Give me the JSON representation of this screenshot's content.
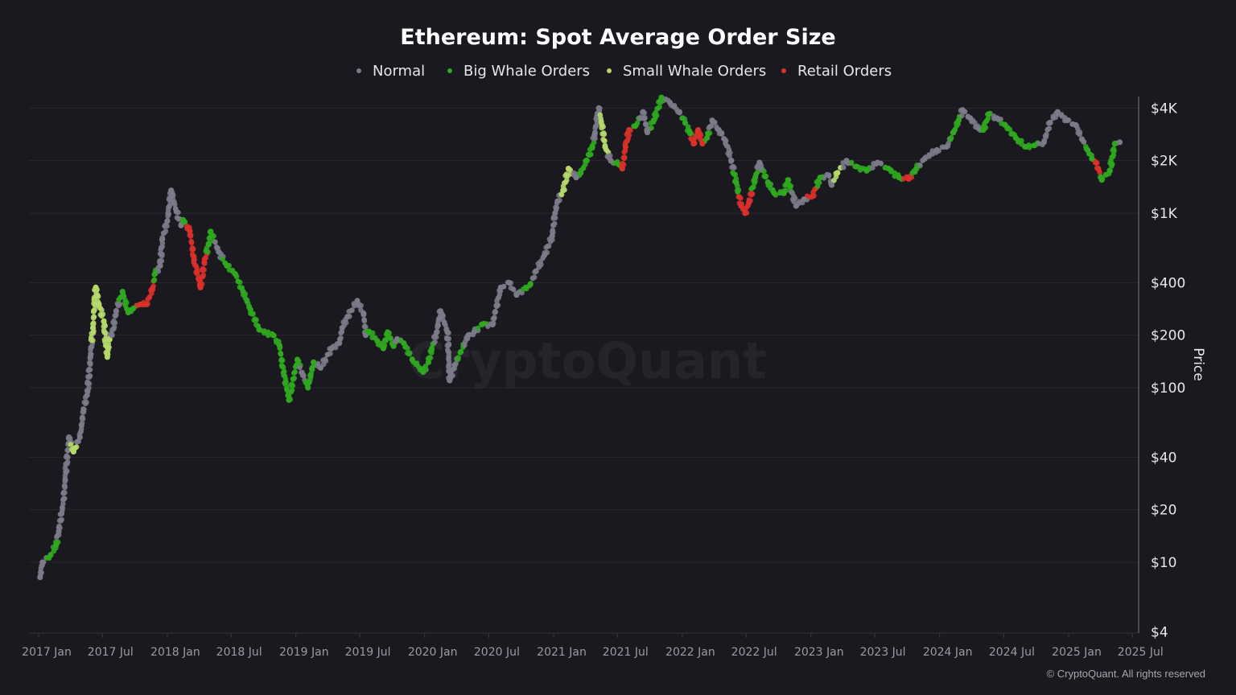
{
  "chart_data": {
    "type": "scatter",
    "title": "Ethereum: Spot Average Order Size",
    "ylabel": "Price",
    "xlabel": "",
    "y_scale": "log",
    "ylim": [
      4,
      4600
    ],
    "xlim": [
      "2017-01-01",
      "2025-07-01"
    ],
    "grid": true,
    "legend_position": "top",
    "y_ticks": [
      {
        "value": 4,
        "label": "$4"
      },
      {
        "value": 10,
        "label": "$10"
      },
      {
        "value": 20,
        "label": "$20"
      },
      {
        "value": 40,
        "label": "$40"
      },
      {
        "value": 100,
        "label": "$100"
      },
      {
        "value": 200,
        "label": "$200"
      },
      {
        "value": 400,
        "label": "$400"
      },
      {
        "value": 1000,
        "label": "$1K"
      },
      {
        "value": 2000,
        "label": "$2K"
      },
      {
        "value": 4000,
        "label": "$4K"
      }
    ],
    "x_ticks": [
      {
        "value": "2017-01-01",
        "label": "2017 Jan"
      },
      {
        "value": "2017-07-01",
        "label": "2017 Jul"
      },
      {
        "value": "2018-01-01",
        "label": "2018 Jan"
      },
      {
        "value": "2018-07-01",
        "label": "2018 Jul"
      },
      {
        "value": "2019-01-01",
        "label": "2019 Jan"
      },
      {
        "value": "2019-07-01",
        "label": "2019 Jul"
      },
      {
        "value": "2020-01-01",
        "label": "2020 Jan"
      },
      {
        "value": "2020-07-01",
        "label": "2020 Jul"
      },
      {
        "value": "2021-01-01",
        "label": "2021 Jan"
      },
      {
        "value": "2021-07-01",
        "label": "2021 Jul"
      },
      {
        "value": "2022-01-01",
        "label": "2022 Jan"
      },
      {
        "value": "2022-07-01",
        "label": "2022 Jul"
      },
      {
        "value": "2023-01-01",
        "label": "2023 Jan"
      },
      {
        "value": "2023-07-01",
        "label": "2023 Jul"
      },
      {
        "value": "2024-01-01",
        "label": "2024 Jan"
      },
      {
        "value": "2024-07-01",
        "label": "2024 Jul"
      },
      {
        "value": "2025-01-01",
        "label": "2025 Jan"
      },
      {
        "value": "2025-07-01",
        "label": "2025 Jul"
      }
    ],
    "series": [
      {
        "name": "Normal",
        "color": "#7a7a88",
        "points": [
          [
            "2017-01-05",
            8.2
          ],
          [
            "2017-01-12",
            10
          ],
          [
            "2017-02-27",
            15
          ],
          [
            "2017-03-07",
            19
          ],
          [
            "2017-03-13",
            23
          ],
          [
            "2017-03-19",
            33
          ],
          [
            "2017-03-28",
            52
          ],
          [
            "2017-04-28",
            52
          ],
          [
            "2017-05-09",
            75
          ],
          [
            "2017-05-20",
            95
          ],
          [
            "2017-05-28",
            150
          ],
          [
            "2017-07-28",
            200
          ],
          [
            "2017-08-09",
            275
          ],
          [
            "2017-12-12",
            500
          ],
          [
            "2017-12-18",
            710
          ],
          [
            "2018-01-01",
            900
          ],
          [
            "2018-01-12",
            1350
          ],
          [
            "2018-01-27",
            1020
          ],
          [
            "2018-02-09",
            850
          ],
          [
            "2018-05-27",
            600
          ],
          [
            "2019-01-21",
            118
          ],
          [
            "2019-03-12",
            130
          ],
          [
            "2019-04-12",
            168
          ],
          [
            "2019-05-04",
            180
          ],
          [
            "2019-05-12",
            220
          ],
          [
            "2019-05-27",
            255
          ],
          [
            "2019-06-24",
            315
          ],
          [
            "2019-07-12",
            265
          ],
          [
            "2019-07-18",
            200
          ],
          [
            "2019-10-15",
            190
          ],
          [
            "2020-02-04",
            208
          ],
          [
            "2020-02-15",
            275
          ],
          [
            "2020-03-06",
            208
          ],
          [
            "2020-03-12",
            110
          ],
          [
            "2020-03-27",
            135
          ],
          [
            "2020-05-04",
            200
          ],
          [
            "2020-05-20",
            208
          ],
          [
            "2020-07-12",
            230
          ],
          [
            "2020-07-23",
            295
          ],
          [
            "2020-08-04",
            375
          ],
          [
            "2020-08-27",
            400
          ],
          [
            "2020-09-18",
            340
          ],
          [
            "2020-11-12",
            465
          ],
          [
            "2020-12-06",
            575
          ],
          [
            "2020-12-28",
            740
          ],
          [
            "2021-01-05",
            1000
          ],
          [
            "2021-01-12",
            1170
          ],
          [
            "2021-03-06",
            1600
          ],
          [
            "2021-04-27",
            2800
          ],
          [
            "2021-05-09",
            4000
          ],
          [
            "2021-06-12",
            2000
          ],
          [
            "2021-09-12",
            3800
          ],
          [
            "2021-09-24",
            2900
          ],
          [
            "2021-11-27",
            4300
          ],
          [
            "2021-12-24",
            3800
          ],
          [
            "2022-03-27",
            3400
          ],
          [
            "2022-04-15",
            3000
          ],
          [
            "2022-05-04",
            2600
          ],
          [
            "2022-05-20",
            2000
          ],
          [
            "2022-08-08",
            1950
          ],
          [
            "2022-11-20",
            1100
          ],
          [
            "2022-12-12",
            1200
          ],
          [
            "2023-02-20",
            1650
          ],
          [
            "2023-03-01",
            1450
          ],
          [
            "2023-04-12",
            2000
          ],
          [
            "2023-07-09",
            1950
          ],
          [
            "2023-11-20",
            2050
          ],
          [
            "2023-12-24",
            2300
          ],
          [
            "2024-01-21",
            2400
          ],
          [
            "2024-03-06",
            3900
          ],
          [
            "2024-03-28",
            3500
          ],
          [
            "2024-04-21",
            3050
          ],
          [
            "2024-06-12",
            3500
          ],
          [
            "2024-10-23",
            2550
          ],
          [
            "2024-11-09",
            3300
          ],
          [
            "2024-12-01",
            3800
          ],
          [
            "2024-12-28",
            3400
          ],
          [
            "2025-01-21",
            3200
          ],
          [
            "2025-02-08",
            2650
          ],
          [
            "2025-05-26",
            2550
          ]
        ]
      },
      {
        "name": "Big Whale Orders",
        "color": "#2fa81f",
        "points": [
          [
            "2017-02-04",
            11
          ],
          [
            "2017-02-20",
            12.6
          ],
          [
            "2017-08-27",
            355
          ],
          [
            "2017-09-12",
            270
          ],
          [
            "2017-09-27",
            285
          ],
          [
            "2017-11-27",
            450
          ],
          [
            "2018-02-15",
            915
          ],
          [
            "2018-04-28",
            665
          ],
          [
            "2018-05-04",
            785
          ],
          [
            "2018-06-19",
            500
          ],
          [
            "2018-07-12",
            450
          ],
          [
            "2018-08-04",
            355
          ],
          [
            "2018-08-25",
            280
          ],
          [
            "2018-09-19",
            215
          ],
          [
            "2018-10-28",
            200
          ],
          [
            "2018-11-15",
            175
          ],
          [
            "2018-11-27",
            122
          ],
          [
            "2018-12-12",
            85
          ],
          [
            "2019-01-05",
            145
          ],
          [
            "2019-02-04",
            100
          ],
          [
            "2019-02-20",
            140
          ],
          [
            "2019-07-27",
            210
          ],
          [
            "2019-08-20",
            185
          ],
          [
            "2019-09-06",
            168
          ],
          [
            "2019-09-18",
            208
          ],
          [
            "2019-10-05",
            173
          ],
          [
            "2019-11-03",
            180
          ],
          [
            "2019-11-27",
            145
          ],
          [
            "2019-12-28",
            123
          ],
          [
            "2020-01-12",
            140
          ],
          [
            "2020-01-21",
            165
          ],
          [
            "2020-04-12",
            160
          ],
          [
            "2020-06-12",
            230
          ],
          [
            "2020-10-27",
            390
          ],
          [
            "2021-03-19",
            1700
          ],
          [
            "2021-04-05",
            2000
          ],
          [
            "2021-04-21",
            2400
          ],
          [
            "2021-07-05",
            1900
          ],
          [
            "2021-08-20",
            3150
          ],
          [
            "2021-10-12",
            3400
          ],
          [
            "2021-11-03",
            4600
          ],
          [
            "2022-01-09",
            3300
          ],
          [
            "2022-01-21",
            2950
          ],
          [
            "2022-03-12",
            2700
          ],
          [
            "2022-06-03",
            1500
          ],
          [
            "2022-07-27",
            1600
          ],
          [
            "2022-09-01",
            1500
          ],
          [
            "2022-09-19",
            1300
          ],
          [
            "2022-10-16",
            1300
          ],
          [
            "2022-10-28",
            1550
          ],
          [
            "2023-01-27",
            1600
          ],
          [
            "2023-05-09",
            1850
          ],
          [
            "2023-06-08",
            1750
          ],
          [
            "2023-08-09",
            1800
          ],
          [
            "2023-09-08",
            1600
          ],
          [
            "2023-10-27",
            1800
          ],
          [
            "2024-02-09",
            2900
          ],
          [
            "2024-02-24",
            3400
          ],
          [
            "2024-05-04",
            3000
          ],
          [
            "2024-05-20",
            3700
          ],
          [
            "2024-07-05",
            3200
          ],
          [
            "2024-08-04",
            2700
          ],
          [
            "2024-09-01",
            2400
          ],
          [
            "2024-09-27",
            2450
          ],
          [
            "2025-02-24",
            2300
          ],
          [
            "2025-03-08",
            2050
          ],
          [
            "2025-04-05",
            1550
          ],
          [
            "2025-04-28",
            1750
          ],
          [
            "2025-05-12",
            2500
          ]
        ]
      },
      {
        "name": "Small Whale Orders",
        "color": "#b5d86a",
        "points": [
          [
            "2017-04-10",
            43
          ],
          [
            "2017-06-04",
            220
          ],
          [
            "2017-06-12",
            375
          ],
          [
            "2017-06-21",
            300
          ],
          [
            "2017-07-05",
            240
          ],
          [
            "2017-07-15",
            150
          ],
          [
            "2017-07-21",
            190
          ],
          [
            "2021-01-28",
            1350
          ],
          [
            "2021-02-12",
            1800
          ],
          [
            "2021-05-18",
            3200
          ],
          [
            "2021-05-27",
            2400
          ],
          [
            "2023-03-17",
            1700
          ]
        ]
      },
      {
        "name": "Retail Orders",
        "color": "#d9302a",
        "points": [
          [
            "2017-10-16",
            300
          ],
          [
            "2017-11-03",
            300
          ],
          [
            "2017-11-20",
            365
          ],
          [
            "2018-03-06",
            790
          ],
          [
            "2018-03-18",
            540
          ],
          [
            "2018-04-05",
            375
          ],
          [
            "2018-04-16",
            520
          ],
          [
            "2021-07-15",
            1800
          ],
          [
            "2021-07-24",
            2400
          ],
          [
            "2021-08-03",
            3000
          ],
          [
            "2022-02-02",
            2500
          ],
          [
            "2022-02-15",
            3000
          ],
          [
            "2022-02-27",
            2500
          ],
          [
            "2022-06-17",
            1100
          ],
          [
            "2022-06-28",
            1000
          ],
          [
            "2022-07-09",
            1150
          ],
          [
            "2023-01-05",
            1250
          ],
          [
            "2023-10-05",
            1570
          ],
          [
            "2025-03-19",
            1950
          ],
          [
            "2025-03-26",
            1800
          ]
        ]
      }
    ]
  },
  "watermark": "CryptoQuant",
  "footer": "© CryptoQuant. All rights reserved"
}
